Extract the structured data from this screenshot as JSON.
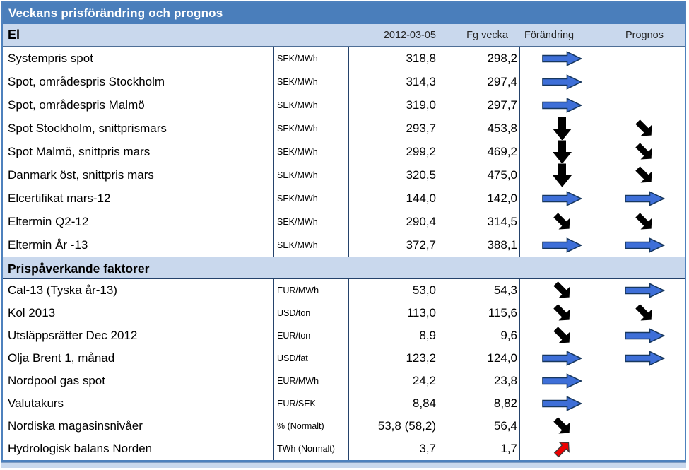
{
  "title": "Veckans prisförändring och prognos",
  "header": {
    "date": "2012-03-05",
    "prev_week": "Fg vecka",
    "change": "Förändring",
    "forecast": "Prognos"
  },
  "sections": [
    {
      "label": "El",
      "rows": [
        {
          "name": "Systempris spot",
          "unit": "SEK/MWh",
          "current": "318,8",
          "previous": "298,2",
          "change": "arrow-right",
          "forecast": ""
        },
        {
          "name": "Spot, områdespris Stockholm",
          "unit": "SEK/MWh",
          "current": "314,3",
          "previous": "297,4",
          "change": "arrow-right",
          "forecast": ""
        },
        {
          "name": "Spot, områdespris Malmö",
          "unit": "SEK/MWh",
          "current": "319,0",
          "previous": "297,7",
          "change": "arrow-right",
          "forecast": ""
        },
        {
          "name": "Spot Stockholm, snittprismars",
          "unit": "SEK/MWh",
          "current": "293,7",
          "previous": "453,8",
          "change": "arrow-down",
          "forecast": "arrow-down-right"
        },
        {
          "name": "Spot Malmö, snittpris mars",
          "unit": "SEK/MWh",
          "current": "299,2",
          "previous": "469,2",
          "change": "arrow-down",
          "forecast": "arrow-down-right"
        },
        {
          "name": "Danmark öst, snittpris mars",
          "unit": "SEK/MWh",
          "current": "320,5",
          "previous": "475,0",
          "change": "arrow-down",
          "forecast": "arrow-down-right"
        },
        {
          "name": "Elcertifikat mars-12",
          "unit": "SEK/MWh",
          "current": "144,0",
          "previous": "142,0",
          "change": "arrow-right",
          "forecast": "arrow-right"
        },
        {
          "name": "Eltermin Q2-12",
          "unit": "SEK/MWh",
          "current": "290,4",
          "previous": "314,5",
          "change": "arrow-down-right",
          "forecast": "arrow-down-right"
        },
        {
          "name": "Eltermin År -13",
          "unit": "SEK/MWh",
          "current": "372,7",
          "previous": "388,1",
          "change": "arrow-right",
          "forecast": "arrow-right"
        }
      ]
    },
    {
      "label": "Prispåverkande faktorer",
      "rows": [
        {
          "name": "Cal-13 (Tyska år-13)",
          "unit": "EUR/MWh",
          "current": "53,0",
          "previous": "54,3",
          "change": "arrow-down-right",
          "forecast": "arrow-right"
        },
        {
          "name": "Kol 2013",
          "unit": "USD/ton",
          "current": "113,0",
          "previous": "115,6",
          "change": "arrow-down-right",
          "forecast": "arrow-down-right"
        },
        {
          "name": "Utsläppsrätter Dec 2012",
          "unit": "EUR/ton",
          "current": "8,9",
          "previous": "9,6",
          "change": "arrow-down-right",
          "forecast": "arrow-right"
        },
        {
          "name": "Olja Brent 1, månad",
          "unit": "USD/fat",
          "current": "123,2",
          "previous": "124,0",
          "change": "arrow-right",
          "forecast": "arrow-right"
        },
        {
          "name": "Nordpool gas spot",
          "unit": "EUR/MWh",
          "current": "24,2",
          "previous": "23,8",
          "change": "arrow-right",
          "forecast": ""
        },
        {
          "name": "Valutakurs",
          "unit": "EUR/SEK",
          "current": "8,84",
          "previous": "8,82",
          "change": "arrow-right",
          "forecast": ""
        },
        {
          "name": "Nordiska magasinsnivåer",
          "unit": "% (Normalt)",
          "current": "53,8 (58,2)",
          "previous": "56,4",
          "change": "arrow-down-right",
          "forecast": ""
        },
        {
          "name": "Hydrologisk balans Norden",
          "unit": "TWh (Normalt)",
          "current": "3,7",
          "previous": "1,7",
          "change": "arrow-up-right",
          "forecast": ""
        }
      ]
    }
  ],
  "colors": {
    "title_bar": "#4A7EBB",
    "band_bg": "#C9D8ED",
    "outer_border": "#4E81BD",
    "grid_line": "#24426B",
    "arrow_blue": "#3E6FD8",
    "arrow_outline": "#17375E",
    "arrow_black": "#000000",
    "arrow_red": "#EE0000"
  }
}
